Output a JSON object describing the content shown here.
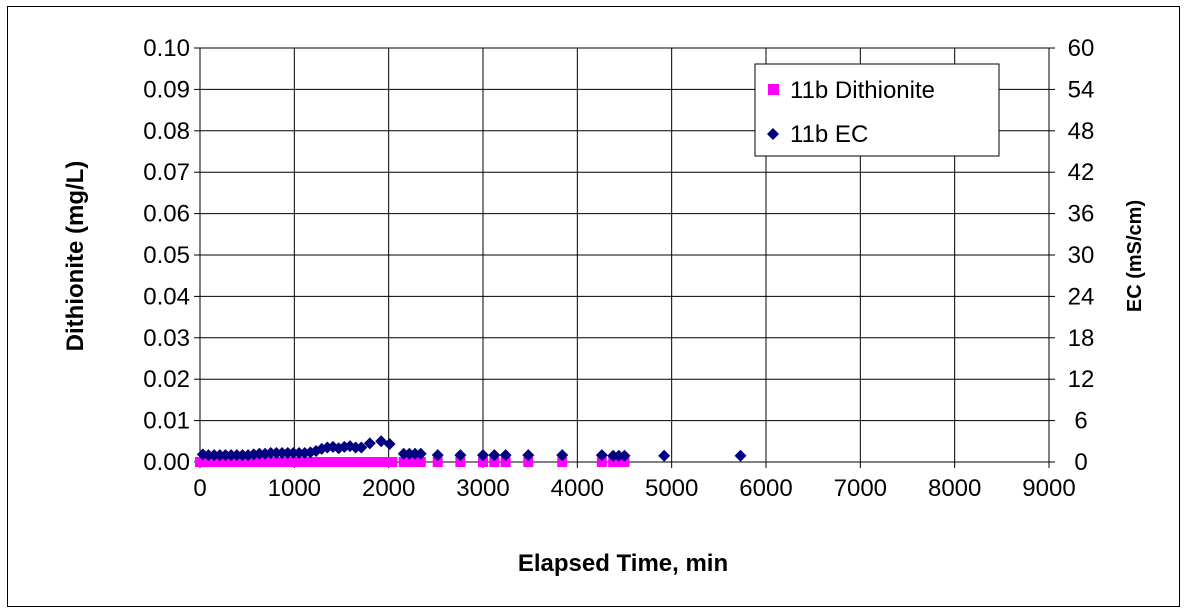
{
  "chart_data": {
    "type": "scatter",
    "title": "",
    "xlabel": "Elapsed Time, min",
    "ylabel": "Dithionite (mg/L)",
    "y2label": "EC (mS/cm)",
    "xlim": [
      0,
      9000
    ],
    "ylim": [
      0,
      0.1
    ],
    "y2lim": [
      0,
      60
    ],
    "xticks": [
      "0",
      "1000",
      "2000",
      "3000",
      "4000",
      "5000",
      "6000",
      "7000",
      "8000",
      "9000"
    ],
    "yticks": [
      "0.00",
      "0.01",
      "0.02",
      "0.03",
      "0.04",
      "0.05",
      "0.06",
      "0.07",
      "0.08",
      "0.09",
      "0.10"
    ],
    "y2ticks": [
      "0",
      "6",
      "12",
      "18",
      "24",
      "30",
      "36",
      "42",
      "48",
      "54",
      "60"
    ],
    "grid": "vertical and horizontal major gridlines",
    "legend_position": "top-right",
    "series": [
      {
        "name": "11b Dithionite",
        "axis": "left",
        "marker": "square",
        "color": "#ff00ff",
        "x": [
          0,
          60,
          120,
          180,
          240,
          300,
          360,
          420,
          480,
          540,
          600,
          660,
          720,
          780,
          840,
          900,
          960,
          1020,
          1080,
          1140,
          1200,
          1260,
          1320,
          1380,
          1440,
          1500,
          1560,
          1620,
          1680,
          1740,
          1800,
          1860,
          1920,
          1980,
          2040,
          2160,
          2220,
          2280,
          2340,
          2520,
          2760,
          3000,
          3120,
          3240,
          3480,
          3840,
          4260,
          4380,
          4440,
          4500
        ],
        "y": [
          0,
          0,
          0,
          0,
          0,
          0,
          0,
          0,
          0,
          0,
          0,
          0,
          0,
          0,
          0,
          0,
          0,
          0,
          0,
          0,
          0,
          0,
          0,
          0,
          0,
          0,
          0,
          0,
          0,
          0,
          0,
          0,
          0,
          0,
          0,
          0,
          0,
          0,
          0,
          0,
          0,
          0,
          0,
          0,
          0,
          0,
          0,
          0,
          0,
          0
        ]
      },
      {
        "name": "11b EC",
        "axis": "right",
        "marker": "diamond",
        "color": "#000080",
        "x": [
          30,
          90,
          150,
          210,
          270,
          330,
          390,
          450,
          510,
          570,
          630,
          690,
          750,
          810,
          870,
          930,
          990,
          1050,
          1110,
          1170,
          1230,
          1290,
          1350,
          1410,
          1470,
          1530,
          1590,
          1650,
          1710,
          1800,
          1920,
          2010,
          2160,
          2220,
          2280,
          2340,
          2520,
          2760,
          3000,
          3120,
          3240,
          3480,
          3840,
          4260,
          4380,
          4440,
          4500,
          4920,
          5730
        ],
        "y": [
          1.1,
          1.0,
          1.0,
          1.0,
          1.0,
          1.0,
          1.0,
          1.0,
          1.0,
          1.1,
          1.2,
          1.2,
          1.3,
          1.3,
          1.3,
          1.3,
          1.3,
          1.3,
          1.3,
          1.4,
          1.6,
          1.9,
          2.1,
          2.2,
          2.0,
          2.2,
          2.3,
          2.1,
          2.1,
          2.7,
          3.0,
          2.6,
          1.2,
          1.2,
          1.2,
          1.2,
          1.0,
          1.0,
          1.0,
          1.0,
          1.0,
          1.0,
          1.0,
          1.0,
          0.9,
          0.9,
          0.9,
          0.9,
          0.9
        ]
      }
    ]
  },
  "colors": {
    "dithionite_marker": "#ff00ff",
    "ec_marker": "#000080",
    "grid": "#000000",
    "frame": "#000000"
  }
}
